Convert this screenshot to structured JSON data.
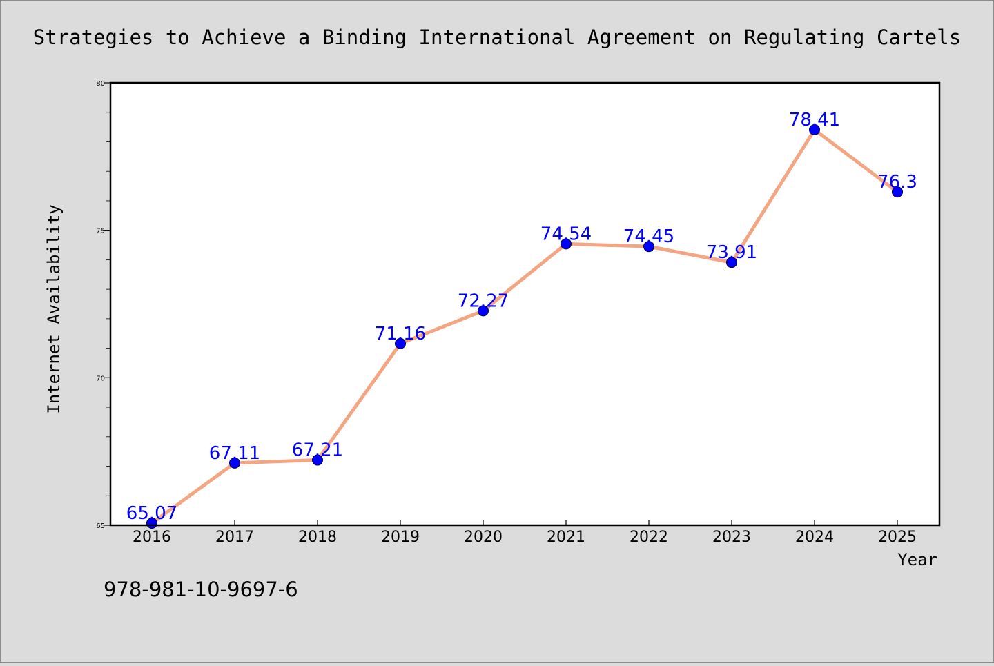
{
  "chart_data": {
    "type": "line",
    "title": "Strategies to Achieve a Binding International Agreement on Regulating Cartels",
    "xlabel": "Year",
    "ylabel": "Internet Availability",
    "categories": [
      "2016",
      "2017",
      "2018",
      "2019",
      "2020",
      "2021",
      "2022",
      "2023",
      "2024",
      "2025"
    ],
    "values": [
      65.07,
      67.11,
      67.21,
      71.16,
      72.27,
      74.54,
      74.45,
      73.91,
      78.41,
      76.3
    ],
    "data_labels": [
      "65.07",
      "67.11",
      "67.21",
      "71.16",
      "72.27",
      "74.54",
      "74.45",
      "73.91",
      "78.41",
      "76.3"
    ],
    "ylim": [
      65,
      80
    ],
    "yticks": [
      65,
      70,
      75,
      80
    ],
    "ytick_labels": [
      "65",
      "70",
      "75",
      "80"
    ],
    "grid": false,
    "legend": "none",
    "colors": {
      "background": "#dcdcdc",
      "plot_background": "#ffffff",
      "line": "#f4a582",
      "marker": "#0000ff",
      "label": "#0000ff"
    }
  },
  "footer": {
    "isbn": "978-981-10-9697-6"
  }
}
